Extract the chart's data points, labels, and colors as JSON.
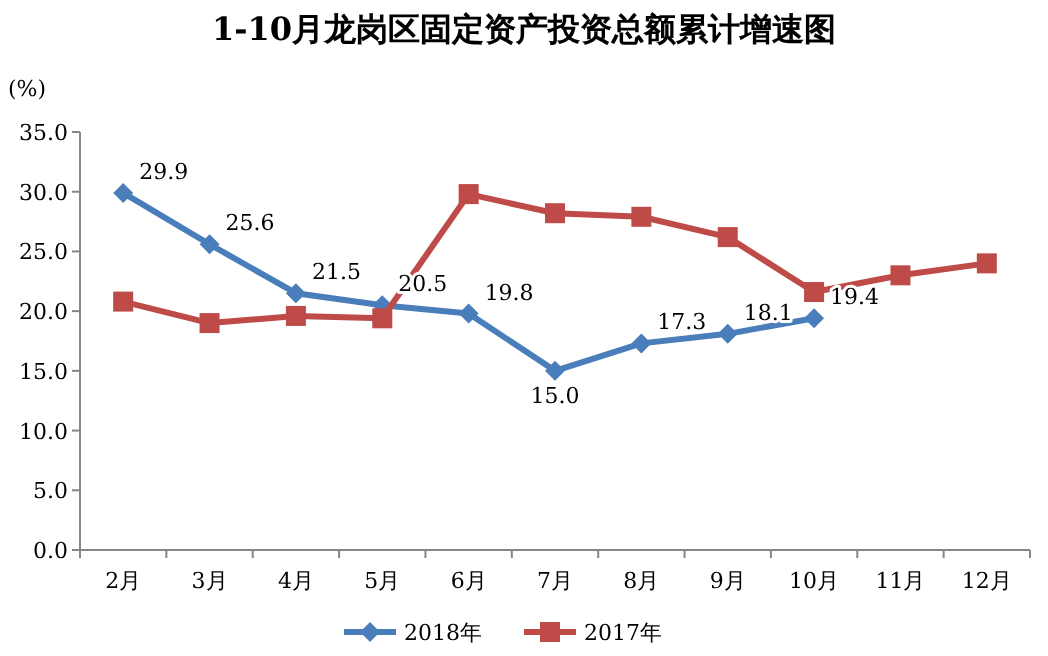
{
  "chart_data": {
    "type": "line",
    "title": "1-10月龙岗区固定资产投资总额累计增速图",
    "ylabel": "(%)",
    "categories": [
      "2月",
      "3月",
      "4月",
      "5月",
      "6月",
      "7月",
      "8月",
      "9月",
      "10月",
      "11月",
      "12月"
    ],
    "series": [
      {
        "name": "2018年",
        "color": "#4a7ebb",
        "marker": "diamond",
        "values": [
          29.9,
          25.6,
          21.5,
          20.5,
          19.8,
          15.0,
          17.3,
          18.1,
          19.4,
          null,
          null
        ],
        "value_labels": [
          "29.9",
          "25.6",
          "21.5",
          "20.5",
          "19.8",
          "15.0",
          "17.3",
          "18.1",
          "19.4",
          null,
          null
        ]
      },
      {
        "name": "2017年",
        "color": "#be4b48",
        "marker": "square",
        "values": [
          20.8,
          19.0,
          19.6,
          19.4,
          29.8,
          28.2,
          27.9,
          26.2,
          21.6,
          23.0,
          24.0
        ]
      }
    ],
    "ylim": [
      0,
      35
    ],
    "yticks": [
      {
        "value": 0,
        "label": "0.0"
      },
      {
        "value": 5,
        "label": "5.0"
      },
      {
        "value": 10,
        "label": "10.0"
      },
      {
        "value": 15,
        "label": "15.0"
      },
      {
        "value": 20,
        "label": "20.0"
      },
      {
        "value": 25,
        "label": "25.0"
      },
      {
        "value": 30,
        "label": "30.0"
      },
      {
        "value": 35,
        "label": "35.0"
      }
    ],
    "legend": "bottom",
    "line_style": "solid"
  }
}
